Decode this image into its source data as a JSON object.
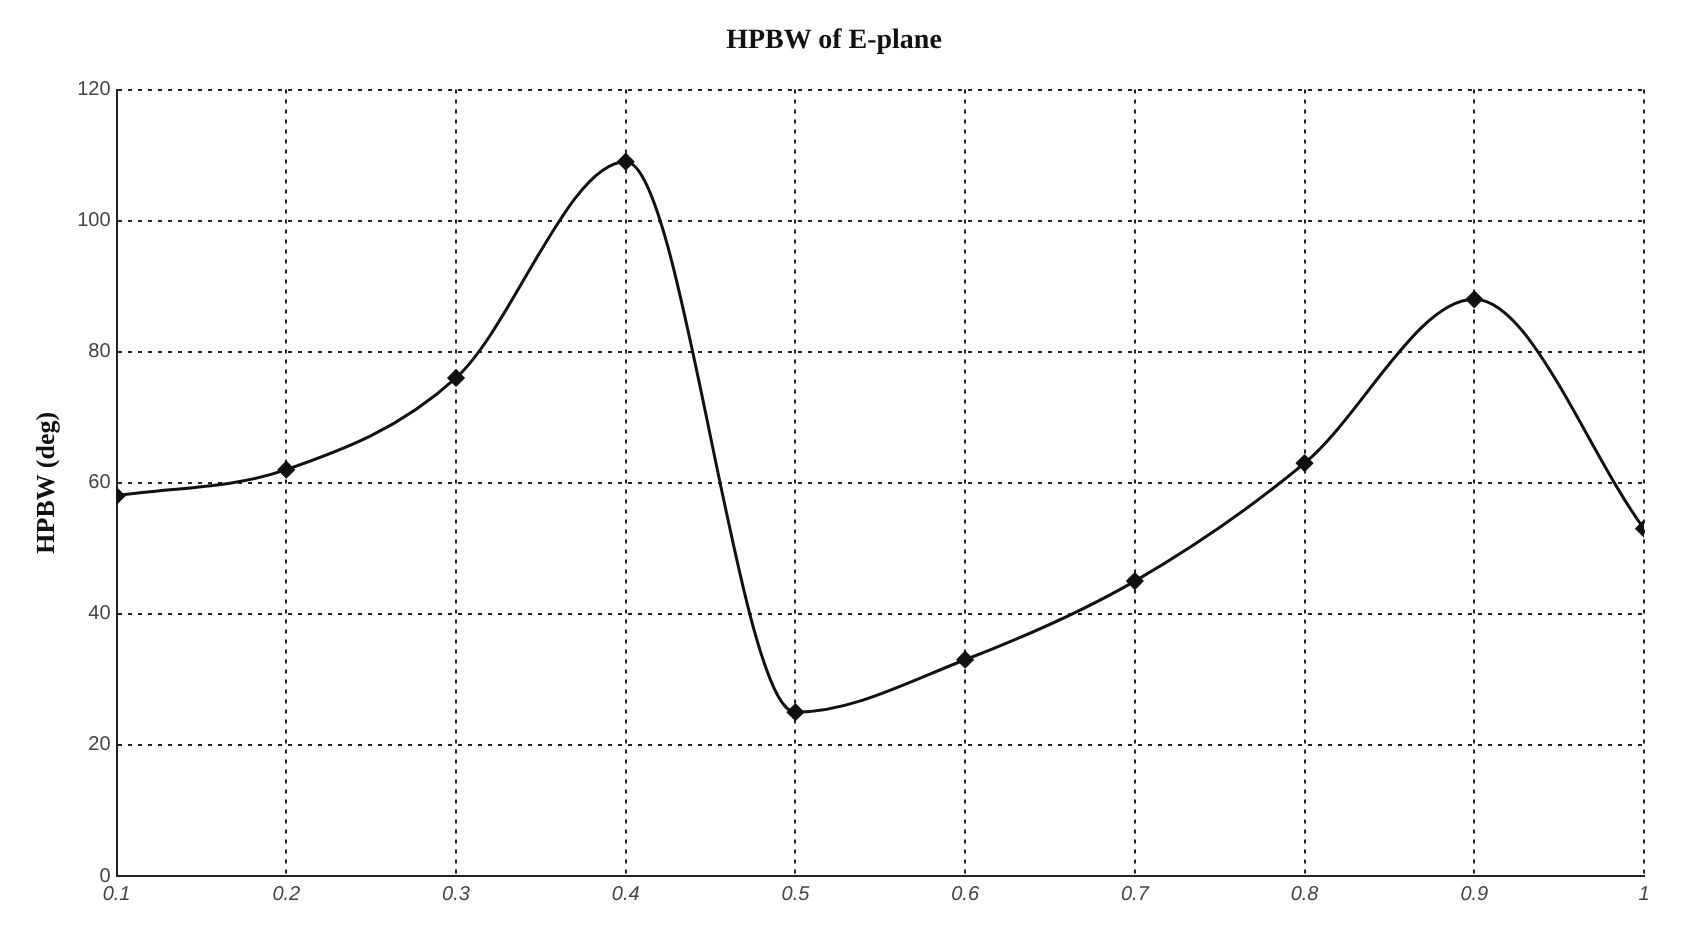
{
  "chart_data": {
    "type": "line",
    "title": "HPBW of E-plane",
    "ylabel": "HPBW (deg)",
    "x": [
      0.1,
      0.2,
      0.3,
      0.4,
      0.5,
      0.6,
      0.7,
      0.8,
      0.9,
      1
    ],
    "series": [
      {
        "color": "#111111",
        "values": [
          58,
          62,
          76,
          109,
          25,
          33,
          45,
          63,
          88,
          53
        ]
      }
    ],
    "xlim": [
      0.1,
      1
    ],
    "xticks": [
      0.1,
      0.2,
      0.3,
      0.4,
      0.5,
      0.6,
      0.7,
      0.8,
      0.9,
      1
    ],
    "ylim": [
      0,
      120
    ],
    "yticks": [
      0,
      20,
      40,
      60,
      80,
      100,
      120
    ],
    "grid": true,
    "legend": false,
    "marker": "diamond",
    "line_style": "solid"
  }
}
